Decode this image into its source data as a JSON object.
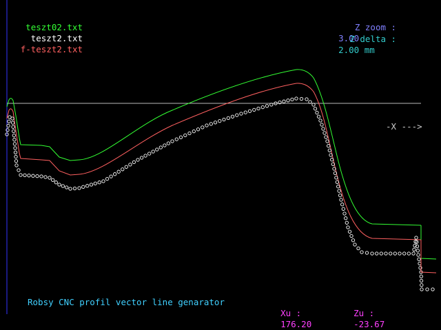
{
  "legend": {
    "items": [
      {
        "label": "teszt02.txt",
        "color": "#33ff33"
      },
      {
        "label": "teszt2.txt",
        "color": "#ffffff"
      },
      {
        "label": "f-teszt2.txt",
        "color": "#ff6060"
      }
    ]
  },
  "zinfo": {
    "zoom_label": "Z zoom :",
    "zoom_value": "3.00",
    "delta_label": "Z delta :",
    "delta_value": "2.00 mm",
    "zoom_color": "#8080ff",
    "delta_color": "#33cccc"
  },
  "axis": {
    "x_arrow": "-X --->",
    "baseline_color": "#bbbbbb",
    "vertical_color": "#3333ff"
  },
  "footer": {
    "title": "Robsy CNC profil vector line genarator",
    "title_color": "#40d0ff",
    "xu_label": "Xu :",
    "xu_value": "176.20",
    "zu_label": "Zu :",
    "zu_value": "-23.67",
    "coord_color": "#ff40ff"
  }
}
